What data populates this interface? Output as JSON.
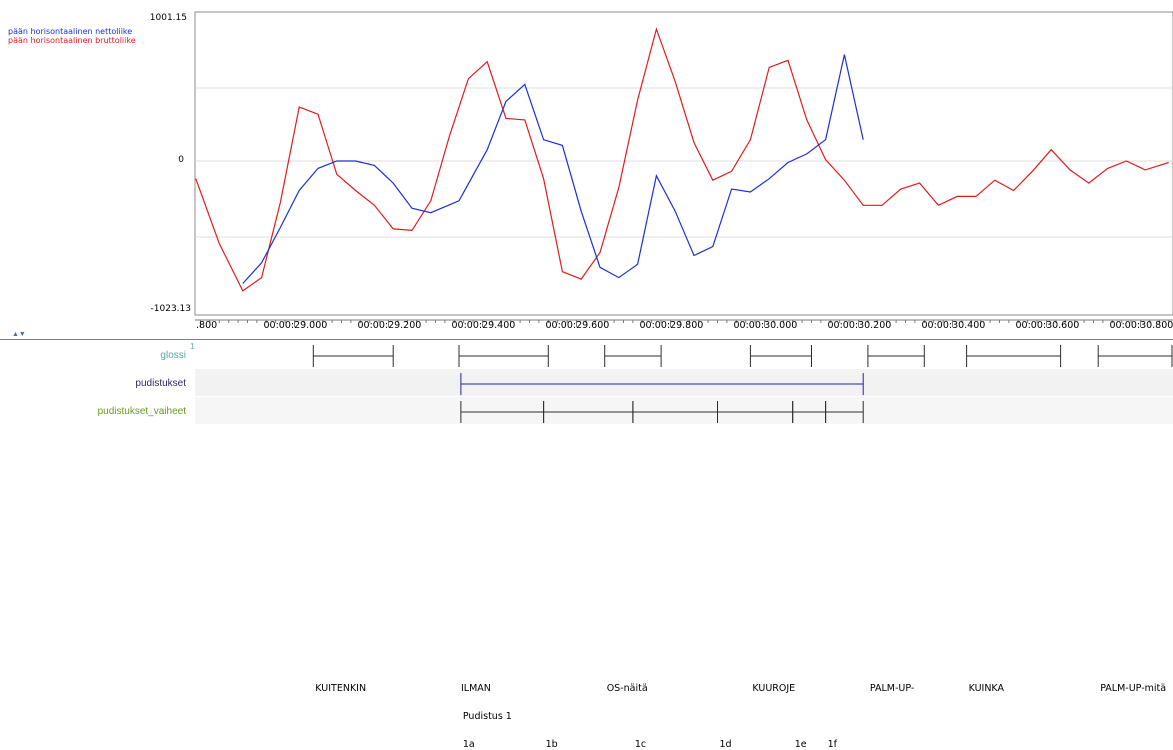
{
  "legend": [
    {
      "label": "pään horisontaalinen nettoliike",
      "color": "#1c2fd6"
    },
    {
      "label": "pään horisontaalinen bruttoliike",
      "color": "#e01c1c"
    }
  ],
  "y_axis": {
    "max_label": "1001.15",
    "zero_label": "0",
    "min_label": "-1023.13"
  },
  "time_ruler": {
    "start_label": ".800",
    "ticks": [
      "00:00:29.000",
      "00:00:29.200",
      "00:00:29.400",
      "00:00:29.600",
      "00:00:29.800",
      "00:00:30.000",
      "00:00:30.200",
      "00:00:30.400",
      "00:00:30.600",
      "00:00:30.800"
    ]
  },
  "tiers": [
    {
      "name": "glossi",
      "color": "#5aa6a6"
    },
    {
      "name": "pudistukset",
      "color": "#2a2a6a"
    },
    {
      "name": "pudistukset_vaiheet",
      "color": "#6a9a1c"
    }
  ],
  "gloss_annotations": [
    {
      "label": "KUITENKIN",
      "start": 29.04,
      "end": 29.21
    },
    {
      "label": "ILMAN",
      "start": 29.35,
      "end": 29.54
    },
    {
      "label": "OS-näitä",
      "start": 29.66,
      "end": 29.78
    },
    {
      "label": "KUUROJE",
      "start": 29.97,
      "end": 30.1
    },
    {
      "label": "PALM-UP-",
      "start": 30.22,
      "end": 30.34
    },
    {
      "label": "KUINKA",
      "start": 30.43,
      "end": 30.63
    },
    {
      "label": "PALM-UP-mitä",
      "start": 30.71,
      "end": 30.93
    }
  ],
  "pudistus_annotation": {
    "label": "Pudistus 1",
    "start": 29.354,
    "end": 30.21
  },
  "phase_annotations": [
    {
      "label": "1a",
      "start": 29.354,
      "end": 29.53
    },
    {
      "label": "1b",
      "start": 29.53,
      "end": 29.72
    },
    {
      "label": "1c",
      "start": 29.72,
      "end": 29.9
    },
    {
      "label": "1d",
      "start": 29.9,
      "end": 30.06
    },
    {
      "label": "1e",
      "start": 30.06,
      "end": 30.13
    },
    {
      "label": "1f",
      "start": 30.13,
      "end": 30.21
    }
  ],
  "chart_data": {
    "type": "line",
    "xlim": [
      28.79,
      30.86
    ],
    "ylim": [
      -1023.13,
      1001.15
    ],
    "series": [
      {
        "name": "pään horisontaalinen nettoliike",
        "color": "#1c2fd6",
        "x": [
          28.89,
          28.93,
          28.97,
          29.01,
          29.05,
          29.09,
          29.13,
          29.17,
          29.21,
          29.25,
          29.29,
          29.35,
          29.41,
          29.45,
          29.49,
          29.53,
          29.57,
          29.61,
          29.65,
          29.69,
          29.73,
          29.77,
          29.81,
          29.85,
          29.89,
          29.93,
          29.97,
          30.01,
          30.05,
          30.09,
          30.13,
          30.17,
          30.21
        ],
        "y": [
          -830,
          -690,
          -450,
          -200,
          -50,
          0,
          0,
          -30,
          -150,
          -320,
          -350,
          -270,
          80,
          420,
          540,
          150,
          110,
          -340,
          -720,
          -790,
          -700,
          -100,
          -340,
          -640,
          -580,
          -190,
          -210,
          -120,
          -10,
          50,
          150,
          750,
          150
        ]
      },
      {
        "name": "pään horisontaalinen bruttoliike",
        "color": "#e01c1c",
        "x": [
          28.79,
          28.84,
          28.89,
          28.93,
          28.97,
          29.01,
          29.05,
          29.09,
          29.13,
          29.17,
          29.21,
          29.25,
          29.29,
          29.33,
          29.37,
          29.41,
          29.45,
          29.49,
          29.53,
          29.57,
          29.61,
          29.65,
          29.69,
          29.73,
          29.77,
          29.81,
          29.85,
          29.89,
          29.93,
          29.97,
          30.01,
          30.05,
          30.09,
          30.13,
          30.17,
          30.21,
          30.25,
          30.29,
          30.33,
          30.37,
          30.41,
          30.45,
          30.49,
          30.53,
          30.57,
          30.61,
          30.65,
          30.69,
          30.73,
          30.77,
          30.81,
          30.86
        ],
        "y": [
          -120,
          -560,
          -880,
          -790,
          -280,
          380,
          330,
          -90,
          -200,
          -300,
          -460,
          -470,
          -270,
          180,
          580,
          700,
          300,
          290,
          -120,
          -750,
          -800,
          -620,
          -180,
          430,
          930,
          560,
          130,
          -130,
          -70,
          150,
          660,
          710,
          290,
          10,
          -130,
          -300,
          -300,
          -190,
          -150,
          -300,
          -240,
          -240,
          -130,
          -200,
          -70,
          80,
          -60,
          -150,
          -50,
          0,
          -60,
          -10
        ]
      }
    ]
  }
}
